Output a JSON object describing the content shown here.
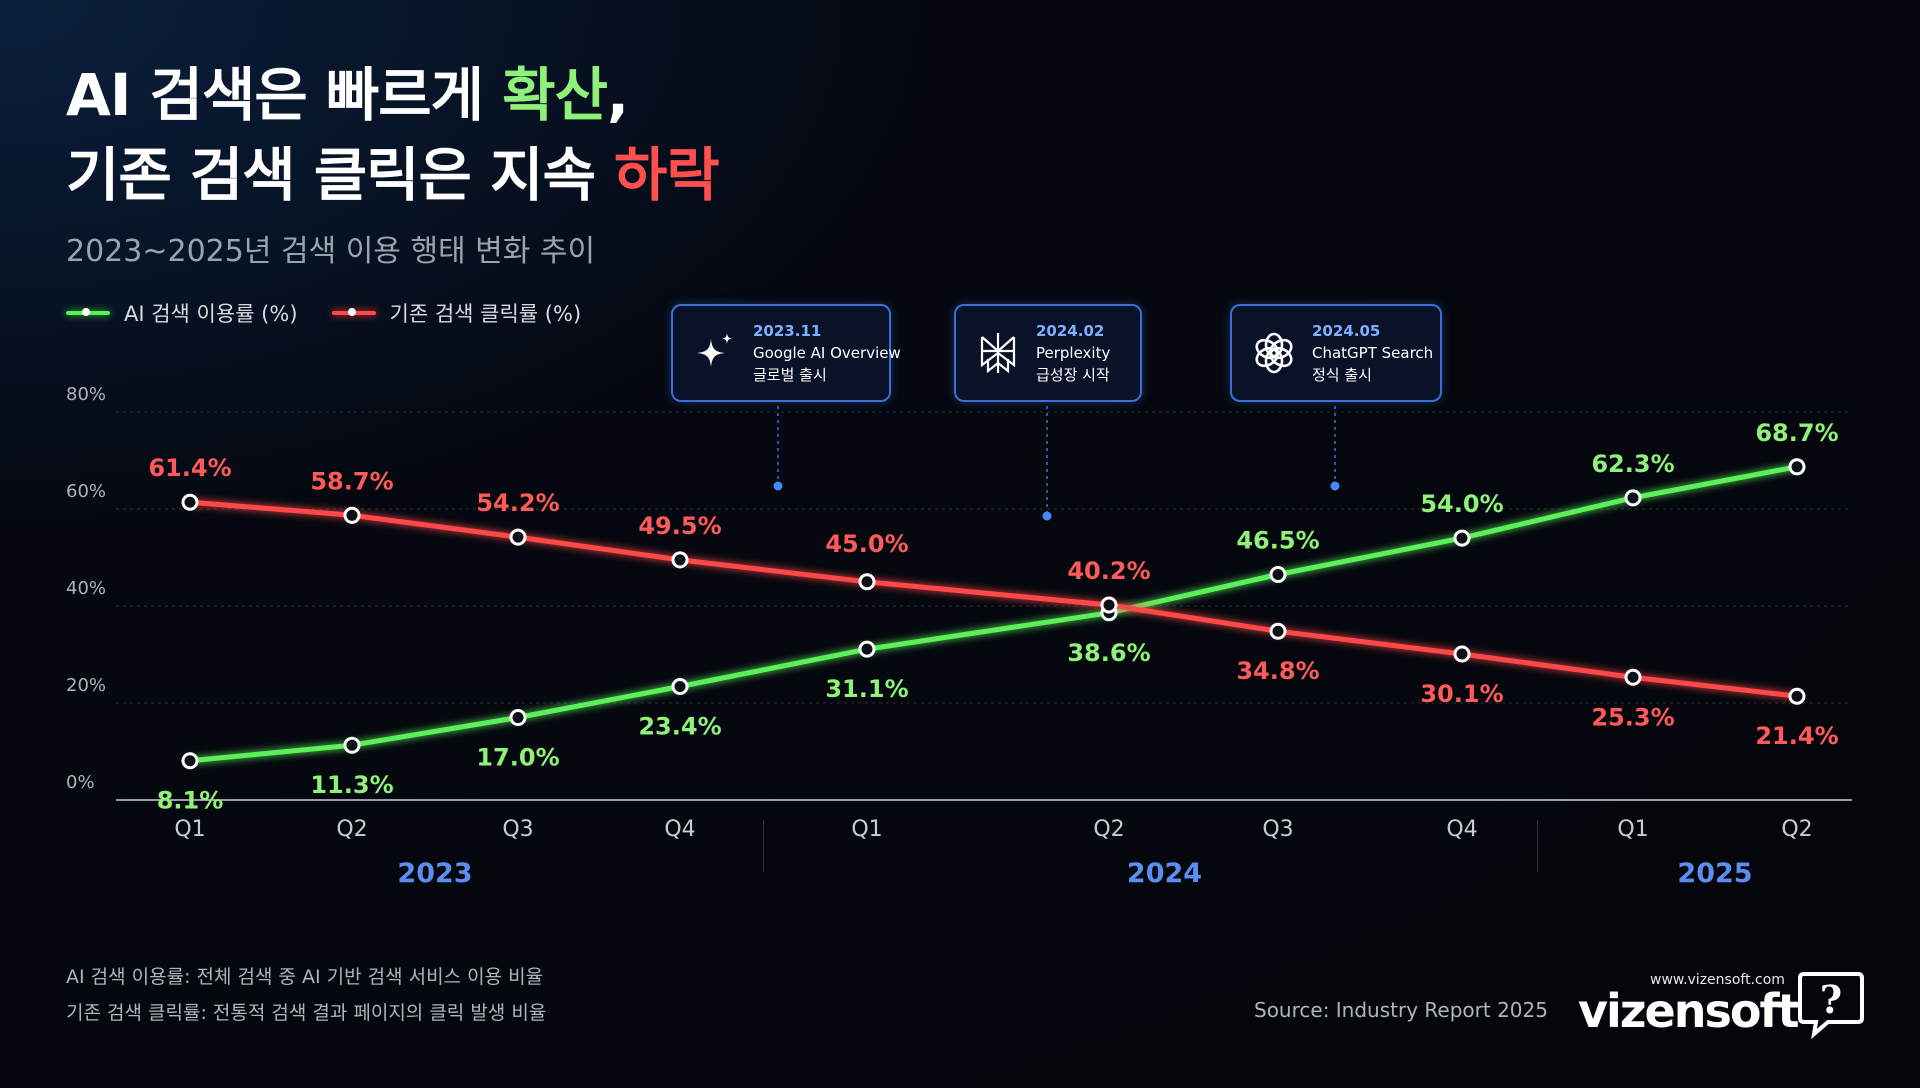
{
  "title": {
    "line1_prefix": "AI 검색은 빠르게 ",
    "line1_highlight": "확산",
    "line1_suffix": ",",
    "line2_prefix": "기존 검색 클릭은 지속 ",
    "line2_highlight": "하락"
  },
  "subtitle": "2023~2025년 검색 이용 행태 변화 추이",
  "colors": {
    "green": "#5cf05a",
    "green_label": "#8ff07a",
    "red": "#ff4a4a",
    "red_label": "#ff5a5a",
    "year_blue": "#5b8ef0",
    "callout_border": "#3b6fd8"
  },
  "callouts": [
    {
      "date": "2023.11",
      "line1": "Google AI Overview",
      "line2": "글로벌 출시",
      "icon": "sparkle-icon"
    },
    {
      "date": "2024.02",
      "line1": "Perplexity",
      "line2": "급성장 시작",
      "icon": "perplexity-icon"
    },
    {
      "date": "2024.05",
      "line1": "ChatGPT Search",
      "line2": "정식 출시",
      "icon": "openai-icon"
    }
  ],
  "chart_data": {
    "type": "line",
    "categories": [
      "Q1",
      "Q2",
      "Q3",
      "Q4",
      "Q1",
      "Q2",
      "Q3",
      "Q4",
      "Q1",
      "Q2"
    ],
    "years": [
      {
        "label": "2023",
        "quarters": 4
      },
      {
        "label": "2024",
        "quarters": 4
      },
      {
        "label": "2025",
        "quarters": 2
      }
    ],
    "series": [
      {
        "name": "AI 검색 이용률 (%)",
        "values": [
          8.1,
          11.3,
          17.0,
          23.4,
          31.1,
          38.6,
          46.5,
          54.0,
          62.3,
          68.7
        ],
        "labels": [
          "8.1%",
          "11.3%",
          "17.0%",
          "23.4%",
          "31.1%",
          "38.6%",
          "46.5%",
          "54.0%",
          "62.3%",
          "68.7%"
        ]
      },
      {
        "name": "기존 검색 클릭률 (%)",
        "values": [
          61.4,
          58.7,
          54.2,
          49.5,
          45.0,
          40.2,
          34.8,
          30.1,
          25.3,
          21.4
        ],
        "labels": [
          "61.4%",
          "58.7%",
          "54.2%",
          "49.5%",
          "45.0%",
          "40.2%",
          "34.8%",
          "30.1%",
          "25.3%",
          "21.4%"
        ]
      }
    ],
    "yticks": [
      "0%",
      "20%",
      "40%",
      "60%",
      "80%"
    ],
    "ylim": [
      0,
      80
    ],
    "grid": true,
    "legend": "top-left"
  },
  "footnotes": [
    "AI 검색 이용률: 전체 검색 중 AI 기반 검색 서비스 이용 비율",
    "기존 검색 클릭률: 전통적 검색 결과 페이지의 클릭 발생 비율"
  ],
  "source": "Source: Industry Report 2025",
  "brand": {
    "url": "www.vizensoft.com",
    "name": "vizensoft",
    "icon": "speech-bubble-question-icon"
  }
}
